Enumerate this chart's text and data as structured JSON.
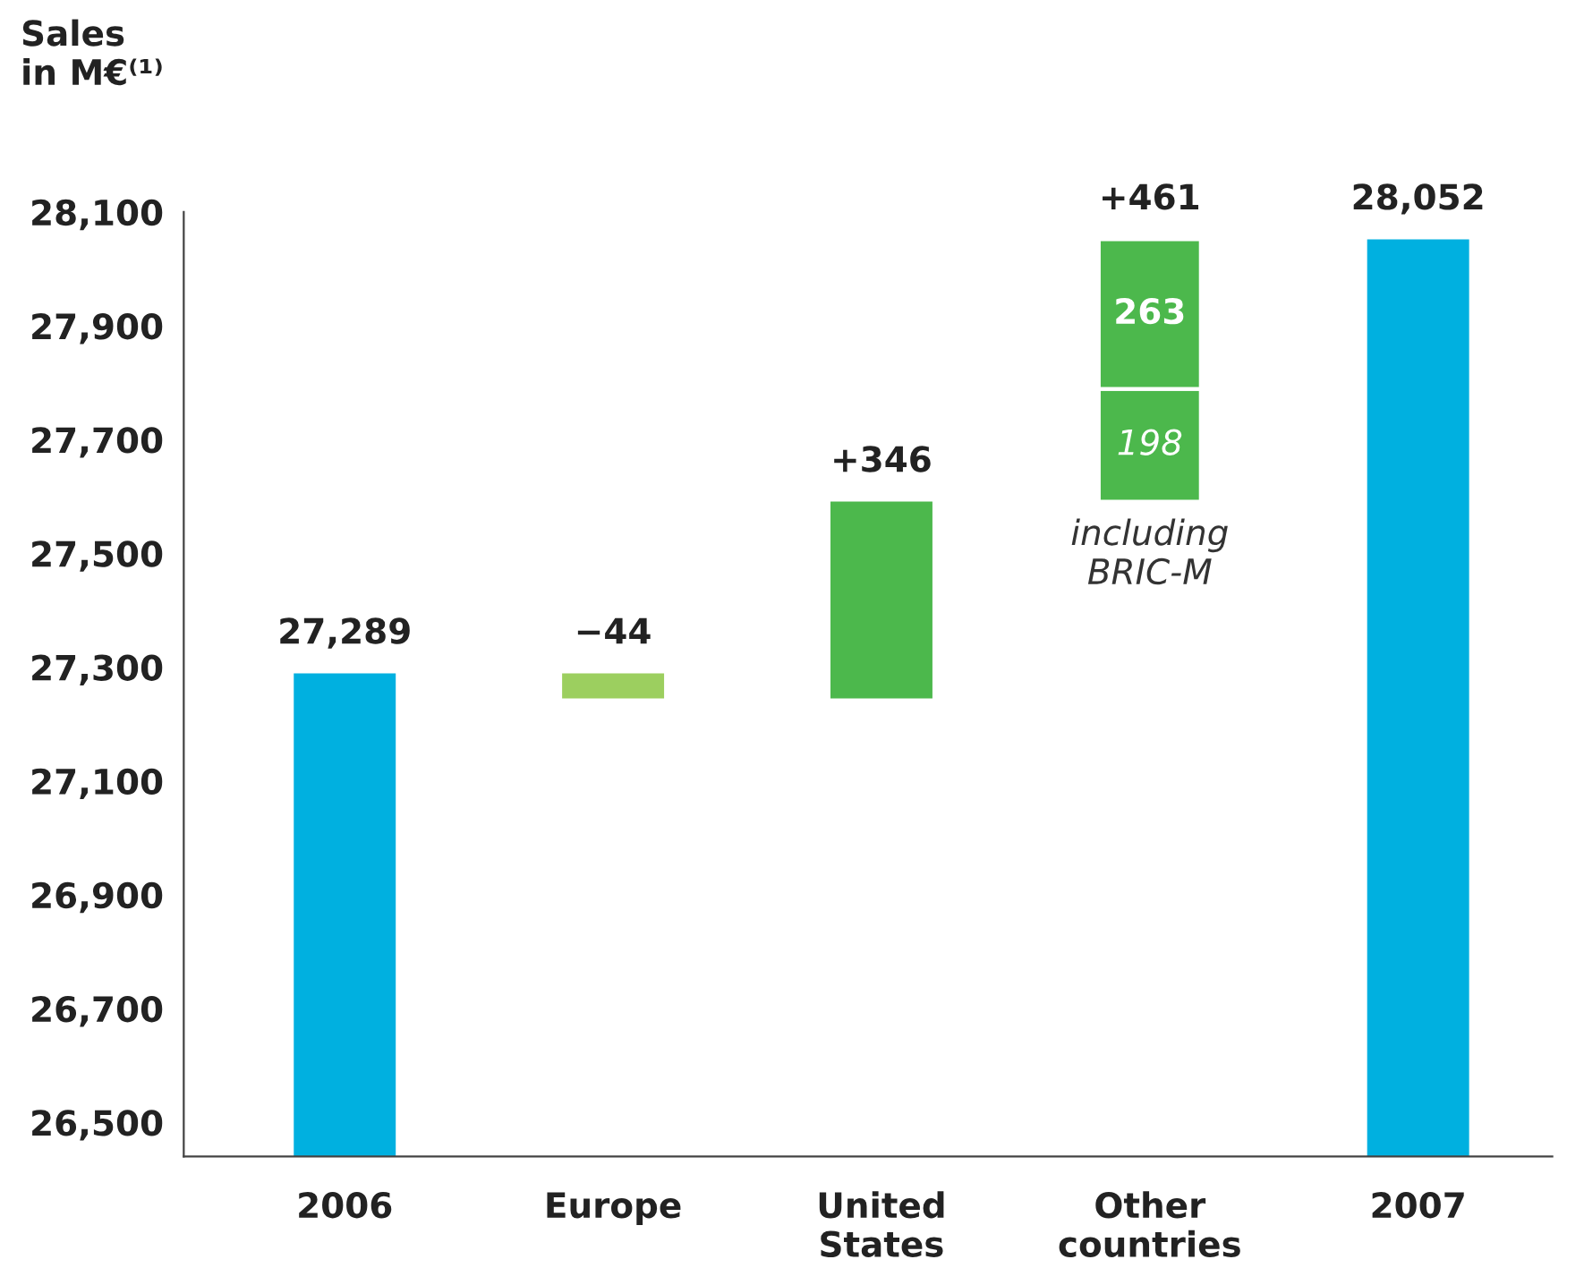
{
  "chart_data": {
    "type": "bar",
    "ylabel": "Sales\nin M€⁽¹⁾",
    "categories": [
      "2006",
      "Europe",
      "United\nStates",
      "Other\ncountries",
      "2007"
    ],
    "series": [
      {
        "colors": [
          "#00b0e0",
          "#9ccf5f",
          "#4cb84c",
          "#4cb84c",
          "#00b0e0"
        ],
        "base": [
          null,
          27289,
          27245,
          27591,
          null
        ],
        "values": [
          27289,
          -44,
          346,
          198,
          28052
        ],
        "value_labels": [
          "27,289",
          "−44",
          "+346",
          "198",
          "28,052"
        ]
      },
      {
        "color": "#4cb84c",
        "base": [
          null,
          null,
          null,
          27789,
          null
        ],
        "values": [
          null,
          null,
          null,
          263,
          null
        ],
        "value_labels": [
          null,
          null,
          null,
          "263",
          null
        ]
      }
    ],
    "totals": [
      null,
      null,
      null,
      "+461",
      null
    ],
    "annotations": [
      "including\nBRIC-M"
    ],
    "ylim": [
      26440,
      28100
    ],
    "yticks": [
      {
        "value": 26500,
        "label": "26,500"
      },
      {
        "value": 26700,
        "label": "26,700"
      },
      {
        "value": 26900,
        "label": "26,900"
      },
      {
        "value": 27100,
        "label": "27,100"
      },
      {
        "value": 27300,
        "label": "27,300"
      },
      {
        "value": 27500,
        "label": "27,500"
      },
      {
        "value": 27700,
        "label": "27,700"
      },
      {
        "value": 27900,
        "label": "27,900"
      },
      {
        "value": 28100,
        "label": "28,100"
      }
    ],
    "grid": false,
    "legend": false
  }
}
